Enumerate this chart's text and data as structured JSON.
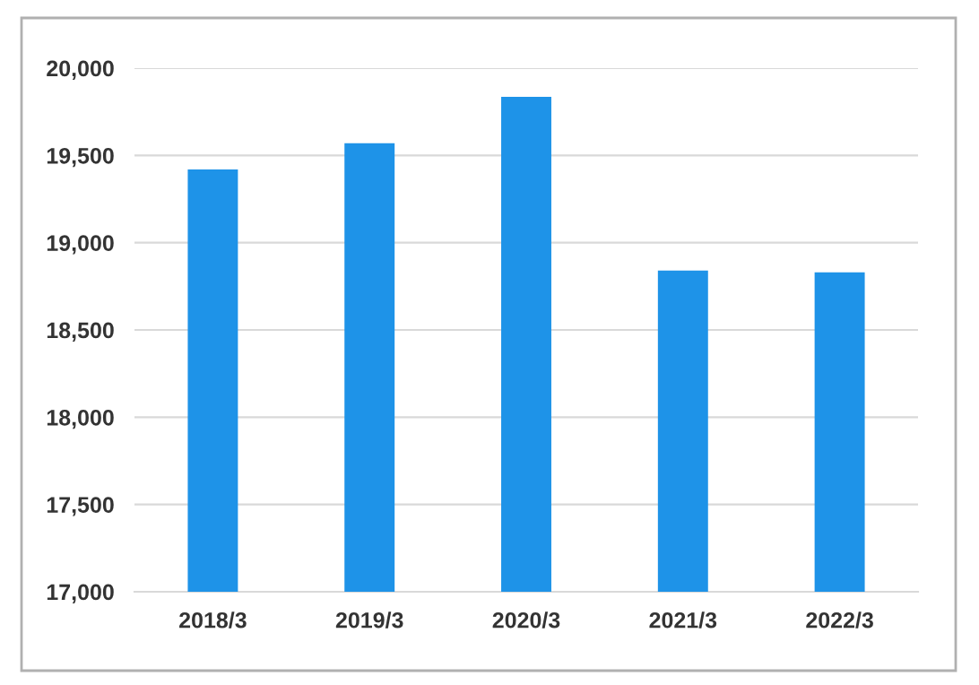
{
  "chart_data": {
    "type": "bar",
    "categories": [
      "2018/3",
      "2019/3",
      "2020/3",
      "2021/3",
      "2022/3"
    ],
    "values": [
      19420,
      19570,
      19835,
      18840,
      18830
    ],
    "color": "#1e93e8",
    "ylim": [
      17000,
      20000
    ],
    "yticks": [
      {
        "value": 17000,
        "label": "17,000"
      },
      {
        "value": 17500,
        "label": "17,500"
      },
      {
        "value": 18000,
        "label": "18,000"
      },
      {
        "value": 18500,
        "label": "18,500"
      },
      {
        "value": 19000,
        "label": "19,000"
      },
      {
        "value": 19500,
        "label": "19,500"
      },
      {
        "value": 20000,
        "label": "20,000"
      }
    ],
    "grid": "y"
  }
}
